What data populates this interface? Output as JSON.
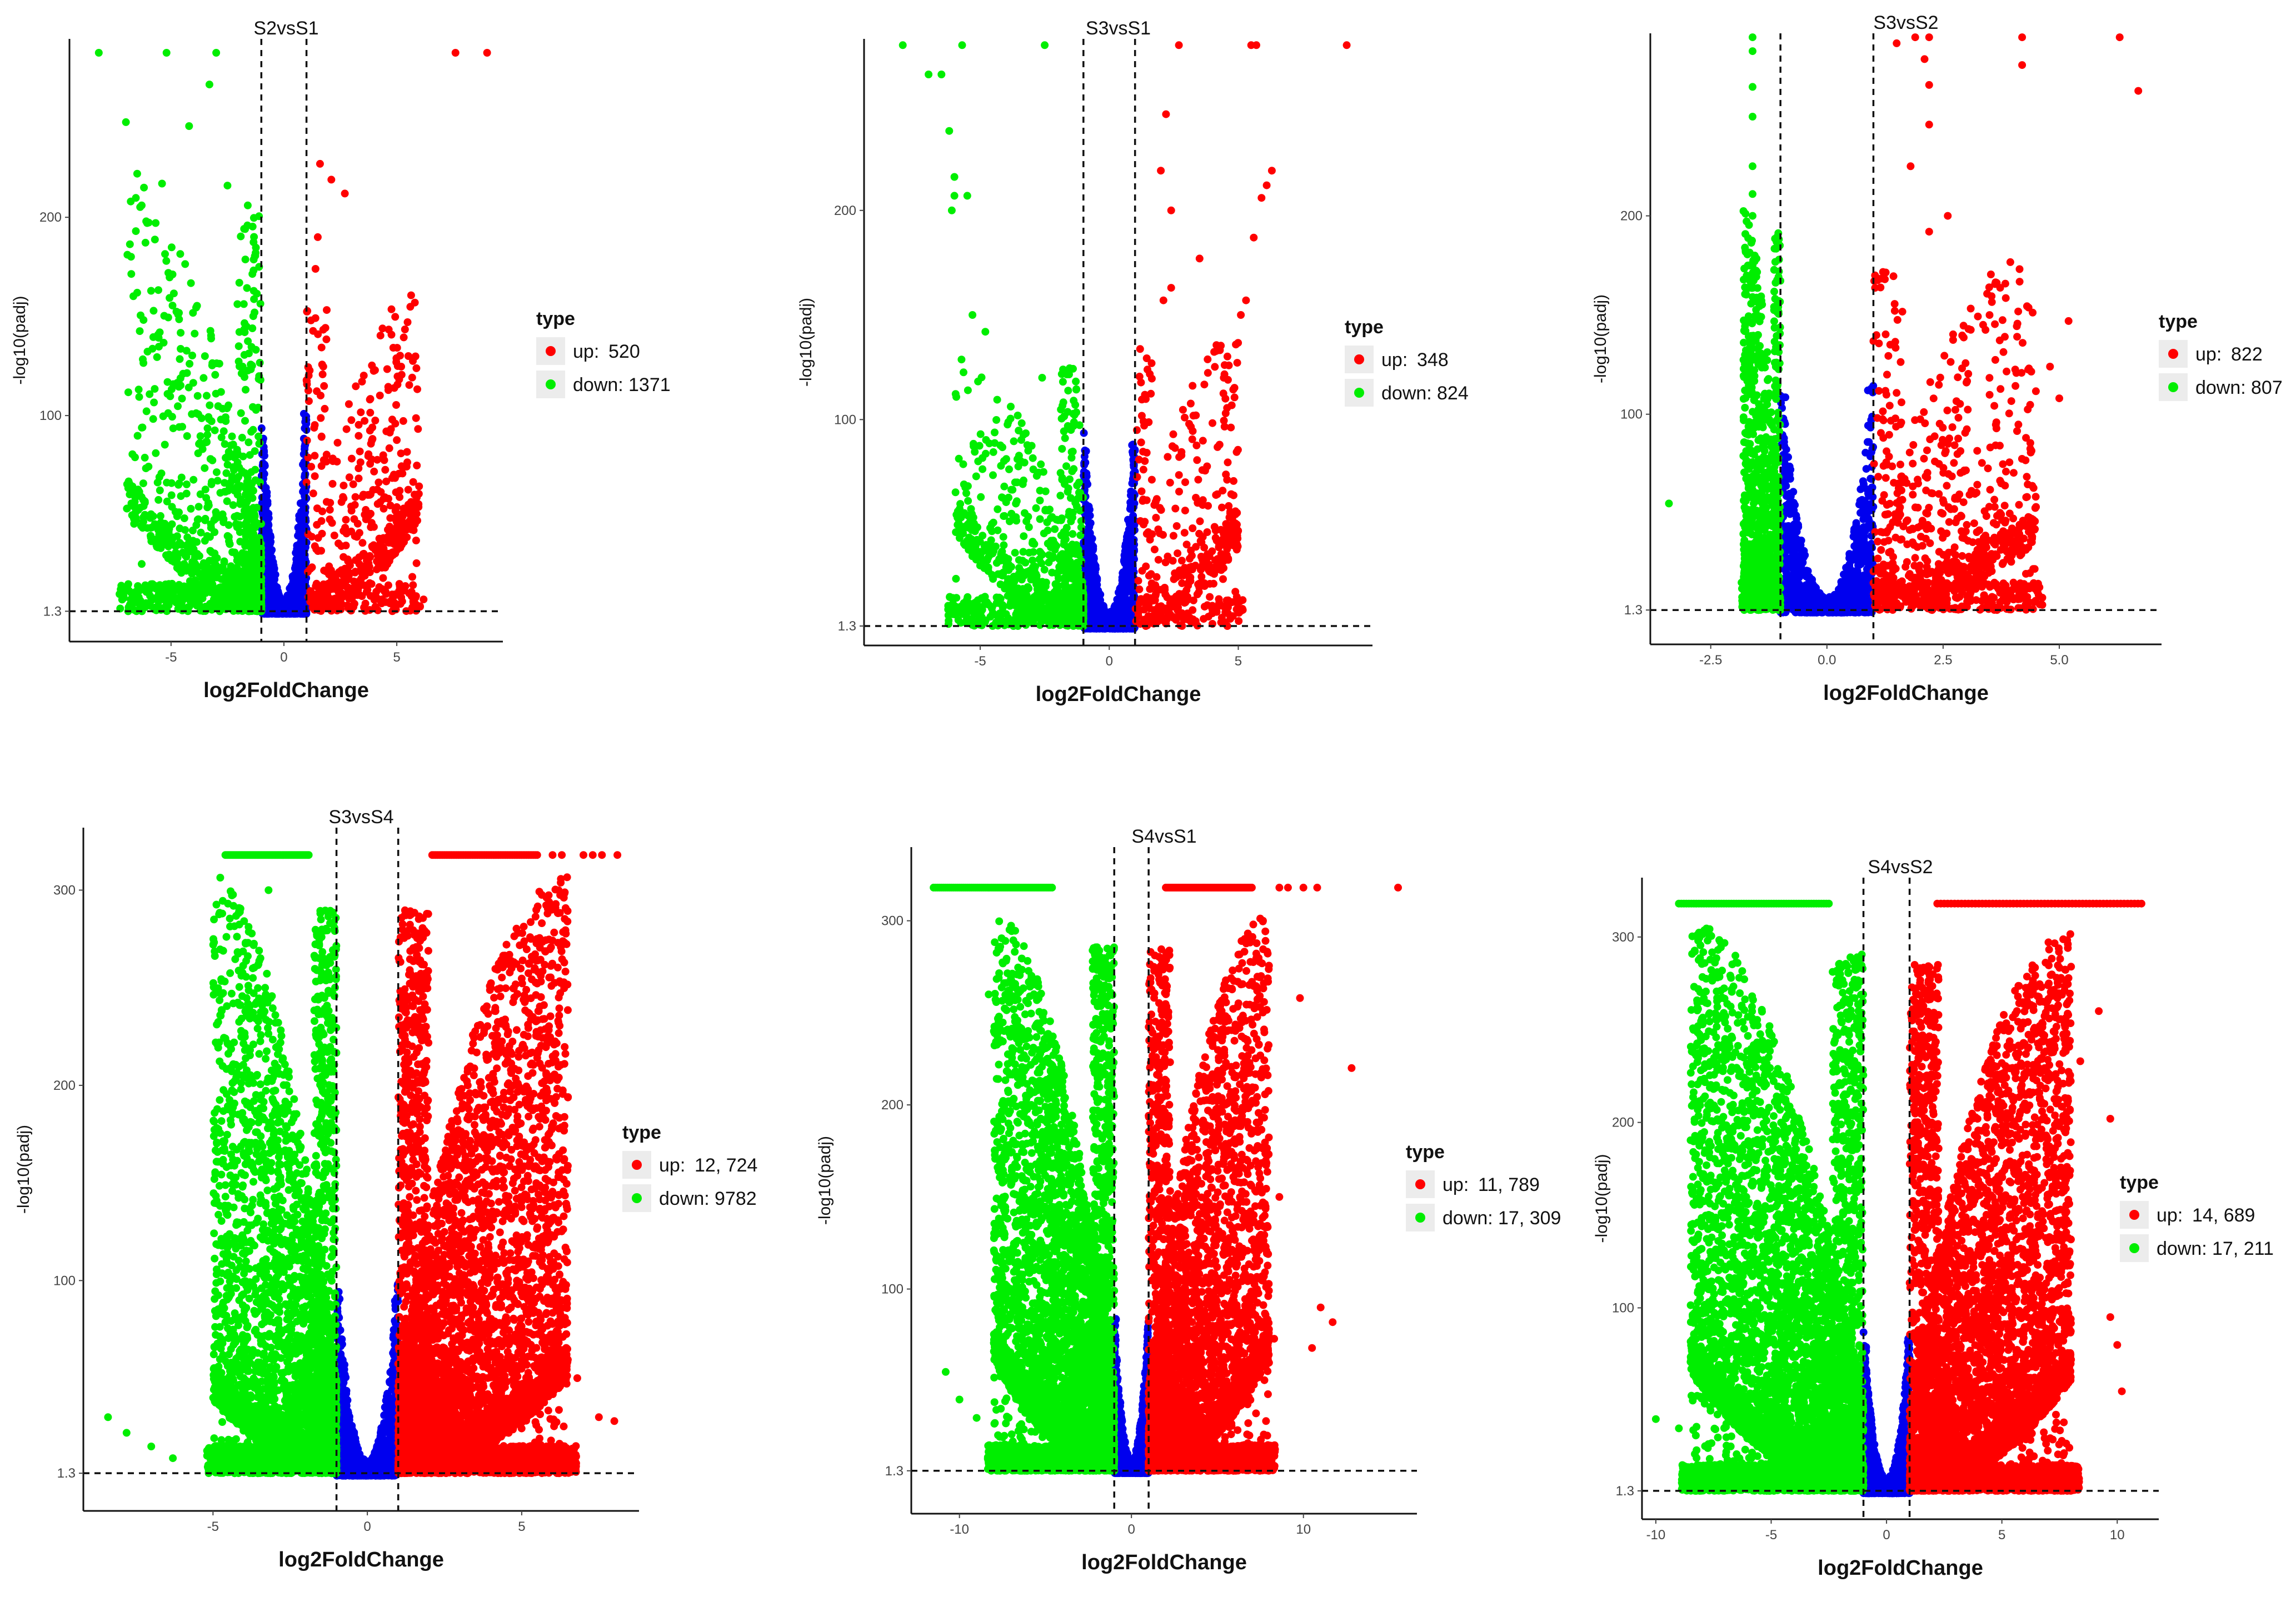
{
  "figure": {
    "colors": {
      "up": "#ff0000",
      "down": "#00ee00",
      "nosig": "#0000ee"
    }
  },
  "chart_data": [
    {
      "type": "scatter",
      "title": "S2vsS1",
      "xlabel": "log2FoldChange",
      "ylabel": "-log10(padj)",
      "xlim": [
        -9.5,
        9.7
      ],
      "ylim": [
        -14,
        290
      ],
      "xticks": [
        -5,
        0,
        5
      ],
      "yticks": [
        1.3,
        100,
        200
      ],
      "fc_threshold": 1,
      "padj_threshold": 1.3,
      "legend": {
        "title": "type",
        "up_label": "up:",
        "up_value": "520",
        "down_label": "down:",
        "down_value": "1371",
        "position": "right"
      },
      "series": [
        {
          "name": "up",
          "color": "#ff0000",
          "max_x": 6,
          "max_y": 160,
          "shape": 0.6,
          "density": 0.45,
          "outliers": [
            [
              7.6,
              283
            ],
            [
              9.0,
              283
            ],
            [
              1.6,
              227
            ],
            [
              2.1,
              219
            ],
            [
              2.7,
              212
            ],
            [
              5.8,
              157
            ],
            [
              4.8,
              98
            ],
            [
              4.4,
              80
            ],
            [
              3.8,
              60
            ],
            [
              1.4,
              174
            ],
            [
              1.2,
              148
            ],
            [
              1.5,
              190
            ]
          ]
        },
        {
          "name": "down",
          "color": "#00ee00",
          "max_x": -7,
          "max_y": 210,
          "shape": 2.0,
          "density": 1.0,
          "outliers": [
            [
              -8.2,
              283
            ],
            [
              -5.2,
              283
            ],
            [
              -3.0,
              283
            ],
            [
              -3.3,
              267
            ],
            [
              -7.0,
              248
            ],
            [
              -4.2,
              246
            ],
            [
              -6.5,
              222
            ],
            [
              -5.4,
              217
            ],
            [
              -6.2,
              215
            ],
            [
              -6.3,
              206
            ],
            [
              -6.1,
              198
            ],
            [
              -2.5,
              216
            ],
            [
              -1.6,
              206
            ],
            [
              -1.1,
              175
            ],
            [
              -5.5,
              142
            ],
            [
              -1.3,
              152
            ],
            [
              -2.0,
              135
            ],
            [
              -3.5,
              130
            ]
          ]
        },
        {
          "name": "nosig",
          "color": "#0000ee",
          "max_y": 100,
          "density": 1.0,
          "outliers": []
        }
      ]
    },
    {
      "type": "scatter",
      "title": "S3vsS1",
      "xlabel": "log2FoldChange",
      "ylabel": "-log10(padj)",
      "xlim": [
        -9.5,
        10.2
      ],
      "ylim": [
        -8,
        282
      ],
      "xticks": [
        -5,
        0,
        5
      ],
      "yticks": [
        1.3,
        100,
        200
      ],
      "fc_threshold": 1,
      "padj_threshold": 1.3,
      "legend": {
        "title": "type",
        "up_label": "up:",
        "up_value": "348",
        "down_label": "down:",
        "down_value": "824",
        "position": "right"
      },
      "series": [
        {
          "name": "up",
          "color": "#ff0000",
          "max_x": 5,
          "max_y": 140,
          "shape": 0.6,
          "density": 0.35,
          "outliers": [
            [
              5.5,
              279
            ],
            [
              5.7,
              279
            ],
            [
              9.2,
              279
            ],
            [
              2.7,
              279
            ],
            [
              2.2,
              246
            ],
            [
              6.3,
              219
            ],
            [
              6.1,
              212
            ],
            [
              5.9,
              206
            ],
            [
              2.0,
              219
            ],
            [
              2.4,
              200
            ],
            [
              5.6,
              187
            ],
            [
              3.5,
              177
            ],
            [
              5.3,
              157
            ],
            [
              5.1,
              150
            ],
            [
              2.1,
              157
            ],
            [
              2.4,
              163
            ],
            [
              4.6,
              119
            ],
            [
              4.5,
              110
            ]
          ]
        },
        {
          "name": "down",
          "color": "#00ee00",
          "max_x": -6,
          "max_y": 130,
          "shape": 2.0,
          "density": 0.8,
          "outliers": [
            [
              -8.0,
              279
            ],
            [
              -5.7,
              279
            ],
            [
              -2.5,
              279
            ],
            [
              -6.5,
              265
            ],
            [
              -7.0,
              265
            ],
            [
              -6.2,
              238
            ],
            [
              -6.0,
              216
            ],
            [
              -6.0,
              207
            ],
            [
              -6.1,
              200
            ],
            [
              -5.5,
              207
            ],
            [
              -5.3,
              150
            ],
            [
              -4.8,
              142
            ],
            [
              -2.6,
              120
            ]
          ]
        },
        {
          "name": "nosig",
          "color": "#0000ee",
          "max_y": 90,
          "density": 1.0,
          "outliers": []
        }
      ]
    },
    {
      "type": "scatter",
      "title": "S3vsS2",
      "xlabel": "log2FoldChange",
      "ylabel": "-log10(padj)",
      "xlim": [
        -3.8,
        7.2
      ],
      "ylim": [
        -16,
        292
      ],
      "xticks": [
        -2.5,
        0.0,
        2.5,
        5.0
      ],
      "yticks": [
        1.3,
        100,
        200
      ],
      "fc_threshold": 1,
      "padj_threshold": 1.3,
      "legend": {
        "title": "type",
        "up_label": "up:",
        "up_value": "822",
        "down_label": "down:",
        "down_value": "807",
        "position": "right"
      },
      "series": [
        {
          "name": "up",
          "color": "#ff0000",
          "max_x": 4.5,
          "max_y": 180,
          "shape": 0.9,
          "density": 0.7,
          "outliers": [
            [
              2.2,
              290
            ],
            [
              4.2,
              290
            ],
            [
              6.3,
              290
            ],
            [
              1.9,
              290
            ],
            [
              1.5,
              287
            ],
            [
              2.1,
              279
            ],
            [
              4.2,
              276
            ],
            [
              2.2,
              266
            ],
            [
              6.7,
              263
            ],
            [
              2.2,
              246
            ],
            [
              1.8,
              225
            ],
            [
              2.6,
              200
            ],
            [
              2.2,
              192
            ],
            [
              3.5,
              150
            ],
            [
              5.2,
              147
            ],
            [
              4.8,
              124
            ],
            [
              5.0,
              108
            ]
          ]
        },
        {
          "name": "down",
          "color": "#00ee00",
          "max_x": -1.8,
          "max_y": 200,
          "shape": 0.8,
          "density": 1.0,
          "outliers": [
            [
              -1.6,
              290
            ],
            [
              -1.6,
              283
            ],
            [
              -1.6,
              265
            ],
            [
              -1.6,
              250
            ],
            [
              -1.6,
              225
            ],
            [
              -1.6,
              211
            ],
            [
              -1.6,
              200
            ],
            [
              -3.4,
              55
            ],
            [
              -1.7,
              175
            ],
            [
              -1.5,
              158
            ]
          ]
        },
        {
          "name": "nosig",
          "color": "#0000ee",
          "max_y": 110,
          "density": 1.0,
          "outliers": []
        }
      ]
    },
    {
      "type": "scatter",
      "title": "S3vsS4",
      "xlabel": "log2FoldChange",
      "ylabel": "-log10(padj)",
      "xlim": [
        -9.2,
        8.8
      ],
      "ylim": [
        -18,
        332
      ],
      "xticks": [
        -5,
        0,
        5
      ],
      "yticks": [
        1.3,
        100,
        200,
        300
      ],
      "fc_threshold": 1,
      "padj_threshold": 1.3,
      "legend": {
        "title": "type",
        "up_label": "up:",
        "up_value": "12, 724",
        "down_label": "down:",
        "down_value": "9782",
        "position": "right"
      },
      "series": [
        {
          "name": "up",
          "color": "#ff0000",
          "max_x": 6.5,
          "max_y": 305,
          "shape": 1.2,
          "density": 5.0,
          "cap_y": 318,
          "cap_range": [
            2.1,
            5.5
          ],
          "cap_extra": [
            [
              6.0,
              318
            ],
            [
              6.3,
              318
            ],
            [
              7.0,
              318
            ],
            [
              7.3,
              318
            ],
            [
              7.6,
              318
            ],
            [
              8.1,
              318
            ]
          ],
          "outliers": [
            [
              6.8,
              50
            ],
            [
              7.5,
              30
            ],
            [
              8.0,
              28
            ],
            [
              6.2,
              245
            ],
            [
              5.3,
              275
            ]
          ]
        },
        {
          "name": "down",
          "color": "#00ee00",
          "max_x": -5,
          "max_y": 305,
          "shape": 1.4,
          "density": 3.6,
          "cap_y": 318,
          "cap_range": [
            -4.6,
            -1.9
          ],
          "cap_extra": [],
          "outliers": [
            [
              -8.4,
              30
            ],
            [
              -7.8,
              22
            ],
            [
              -7.0,
              15
            ],
            [
              -6.3,
              9
            ],
            [
              -4.8,
              222
            ],
            [
              -4.6,
              224
            ],
            [
              -3.2,
              300
            ]
          ]
        },
        {
          "name": "nosig",
          "color": "#0000ee",
          "max_y": 95,
          "density": 1.2,
          "outliers": []
        }
      ]
    },
    {
      "type": "scatter",
      "title": "S4vsS1",
      "xlabel": "log2FoldChange",
      "ylabel": "-log10(padj)",
      "xlim": [
        -12.8,
        16.6
      ],
      "ylim": [
        -22,
        340
      ],
      "xticks": [
        -10,
        0,
        10
      ],
      "yticks": [
        1.3,
        100,
        200,
        300
      ],
      "fc_threshold": 1,
      "padj_threshold": 1.3,
      "legend": {
        "title": "type",
        "up_label": "up:",
        "up_value": "11, 789",
        "down_label": "down:",
        "down_value": "17, 309",
        "position": "right"
      },
      "series": [
        {
          "name": "up",
          "color": "#ff0000",
          "max_x": 8,
          "max_y": 300,
          "shape": 1.2,
          "density": 4.0,
          "cap_y": 318,
          "cap_range": [
            2.0,
            7.0
          ],
          "cap_extra": [
            [
              8.6,
              318
            ],
            [
              9.1,
              318
            ],
            [
              10.0,
              318
            ],
            [
              10.8,
              318
            ],
            [
              15.5,
              318
            ]
          ],
          "outliers": [
            [
              12.8,
              220
            ],
            [
              10.5,
              68
            ],
            [
              8.6,
              150
            ],
            [
              7.2,
              145
            ],
            [
              9.8,
              258
            ],
            [
              8.3,
              73
            ],
            [
              8.0,
              60
            ],
            [
              11.7,
              82
            ],
            [
              11.0,
              90
            ]
          ]
        },
        {
          "name": "down",
          "color": "#00ee00",
          "max_x": -8,
          "max_y": 300,
          "shape": 1.2,
          "density": 5.0,
          "cap_y": 318,
          "cap_range": [
            -11.5,
            -4.5
          ],
          "cap_extra": [],
          "outliers": [
            [
              -10.8,
              55
            ],
            [
              -10.0,
              40
            ],
            [
              -9.0,
              30
            ],
            [
              -8.3,
              260
            ],
            [
              -8.0,
              240
            ]
          ]
        },
        {
          "name": "nosig",
          "color": "#0000ee",
          "max_y": 80,
          "density": 1.4,
          "outliers": []
        }
      ]
    },
    {
      "type": "scatter",
      "title": "S4vsS2",
      "xlabel": "log2FoldChange",
      "ylabel": "-log10(padj)",
      "xlim": [
        -10.6,
        11.8
      ],
      "ylim": [
        -14,
        332
      ],
      "xticks": [
        -10,
        -5,
        0,
        5,
        10
      ],
      "yticks": [
        1.3,
        100,
        200,
        300
      ],
      "fc_threshold": 1,
      "padj_threshold": 1.3,
      "legend": {
        "title": "type",
        "up_label": "up:",
        "up_value": "14, 689",
        "down_label": "down:",
        "down_value": "17, 211",
        "position": "right"
      },
      "series": [
        {
          "name": "up",
          "color": "#ff0000",
          "max_x": 8,
          "max_y": 300,
          "shape": 1.0,
          "density": 5.0,
          "cap_y": 318,
          "cap_range": [
            2.2,
            11.2
          ],
          "cap_extra": [],
          "outliers": [
            [
              9.7,
              202
            ],
            [
              10.0,
              80
            ],
            [
              9.2,
              260
            ],
            [
              8.4,
              233
            ],
            [
              9.7,
              95
            ],
            [
              10.2,
              55
            ]
          ]
        },
        {
          "name": "down",
          "color": "#00ee00",
          "max_x": -8.5,
          "max_y": 305,
          "shape": 1.0,
          "density": 5.4,
          "cap_y": 318,
          "cap_range": [
            -9.0,
            -2.5
          ],
          "cap_extra": [],
          "outliers": [
            [
              -10.0,
              40
            ],
            [
              -9.0,
              35
            ],
            [
              -8.4,
              50
            ],
            [
              -7.5,
              218
            ],
            [
              -7.0,
              245
            ]
          ]
        },
        {
          "name": "nosig",
          "color": "#0000ee",
          "max_y": 80,
          "density": 1.6,
          "outliers": []
        }
      ]
    }
  ]
}
